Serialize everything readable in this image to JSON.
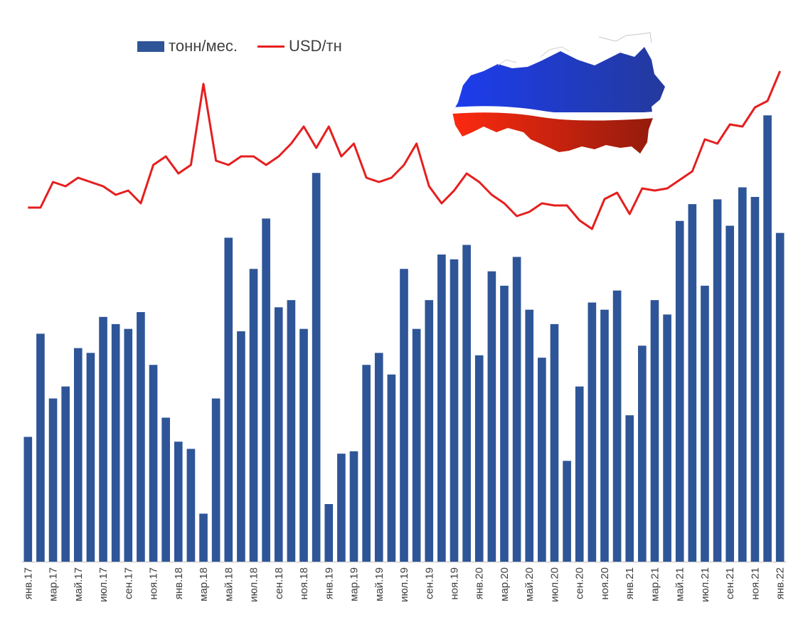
{
  "legend": {
    "bars_label": "тонн/мес.",
    "line_label": "USD/тн"
  },
  "colors": {
    "bars": "#2E5597",
    "line": "#E61E1E",
    "flag_white": "#FFFFFF",
    "flag_blue": "#1E3EC8",
    "flag_red": "#E02010"
  },
  "icons": [
    "russia-map-icon"
  ],
  "chart_data": {
    "type": "bar",
    "title": "",
    "xlabel": "",
    "ylabel": "",
    "grid": false,
    "legend_position": "top-left",
    "y_axis_labels_shown": false,
    "categories": [
      "янв.17",
      "фев.17",
      "мар.17",
      "апр.17",
      "май.17",
      "июн.17",
      "июл.17",
      "авг.17",
      "сен.17",
      "окт.17",
      "ноя.17",
      "дек.17",
      "янв.18",
      "фев.18",
      "мар.18",
      "апр.18",
      "май.18",
      "июн.18",
      "июл.18",
      "авг.18",
      "сен.18",
      "окт.18",
      "ноя.18",
      "дек.18",
      "янв.19",
      "фев.19",
      "мар.19",
      "апр.19",
      "май.19",
      "июн.19",
      "июл.19",
      "авг.19",
      "сен.19",
      "окт.19",
      "ноя.19",
      "дек.19",
      "янв.20",
      "фев.20",
      "мар.20",
      "апр.20",
      "май.20",
      "июн.20",
      "июл.20",
      "авг.20",
      "сен.20",
      "окт.20",
      "ноя.20",
      "дек.20",
      "янв.21",
      "фев.21",
      "мар.21",
      "апр.21",
      "май.21",
      "июн.21",
      "июл.21",
      "авг.21",
      "сен.21",
      "окт.21",
      "ноя.21",
      "дек.21",
      "янв.22"
    ],
    "tick_labels": [
      "янв.17",
      "мар.17",
      "май.17",
      "июл.17",
      "сен.17",
      "ноя.17",
      "янв.18",
      "мар.18",
      "май.18",
      "июл.18",
      "сен.18",
      "ноя.18",
      "янв.19",
      "мар.19",
      "май.19",
      "июл.19",
      "сен.19",
      "ноя.19",
      "янв.20",
      "мар.20",
      "май.20",
      "июл.20",
      "сен.20",
      "ноя.20",
      "янв.21",
      "мар.21",
      "май.21",
      "июл.21",
      "сен.21",
      "ноя.21",
      "янв.22"
    ],
    "series": [
      {
        "name": "тонн/мес.",
        "type": "bar",
        "axis": "left",
        "ylim": [
          0,
          100
        ],
        "values": [
          26,
          47.5,
          34,
          36.5,
          44.5,
          43.5,
          51,
          49.5,
          48.5,
          52,
          41,
          30,
          25,
          23.5,
          10,
          34,
          67.5,
          48,
          61,
          71.5,
          53,
          54.5,
          48.5,
          81,
          12,
          22.5,
          23,
          41,
          43.5,
          39,
          61,
          48.5,
          54.5,
          64,
          63,
          66,
          43,
          60.5,
          57.5,
          63.5,
          52.5,
          42.5,
          49.5,
          21,
          36.5,
          54,
          52.5,
          56.5,
          30.5,
          45,
          54.5,
          51.5,
          71,
          74.5,
          57.5,
          75.5,
          70,
          78,
          76,
          93,
          68.5
        ]
      },
      {
        "name": "USD/тн",
        "type": "line",
        "axis": "right",
        "ylim": [
          0,
          100
        ],
        "values": [
          66,
          66,
          72,
          71,
          73,
          72,
          71,
          69,
          70,
          67,
          76,
          78,
          74,
          76,
          95,
          77,
          76,
          78,
          78,
          76,
          78,
          81,
          85,
          80,
          85,
          78,
          81,
          73,
          72,
          73,
          76,
          81,
          71,
          67,
          70,
          74,
          72,
          69,
          67,
          64,
          65,
          67,
          66.5,
          66.5,
          63,
          61,
          68,
          69.5,
          64.5,
          70.5,
          70,
          70.5,
          72.5,
          74.5,
          82,
          81,
          85.5,
          85,
          89.5,
          91,
          98
        ]
      }
    ]
  }
}
